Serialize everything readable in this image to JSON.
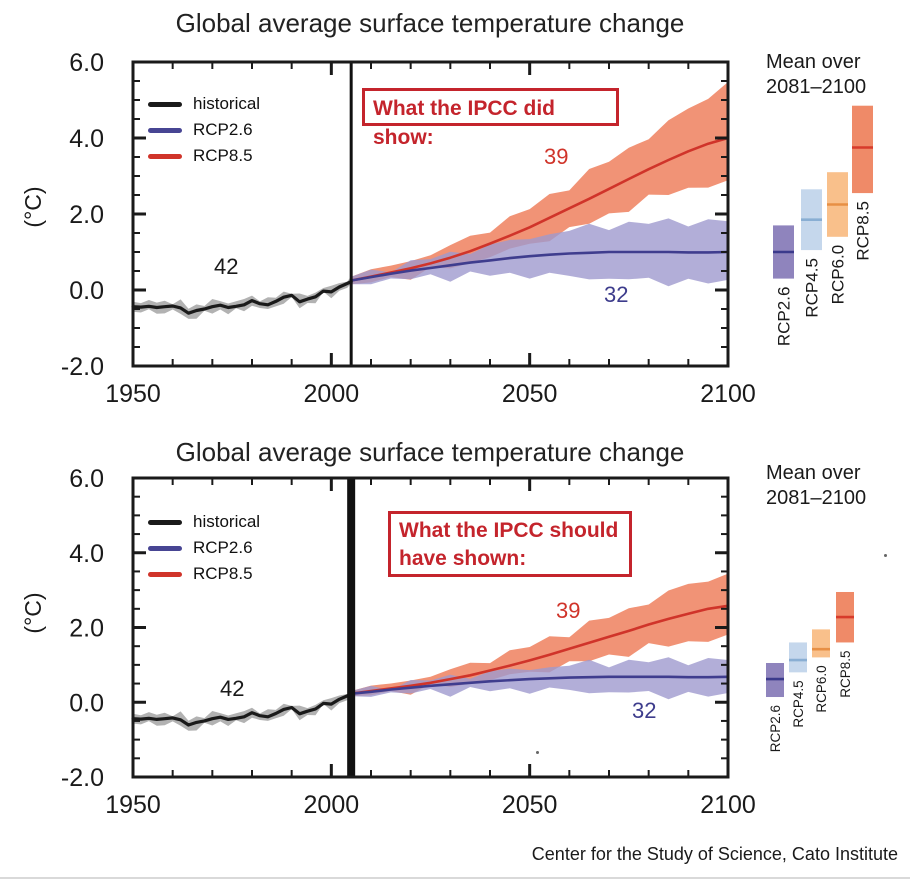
{
  "panels": [
    {
      "title": "Global average surface temperature change",
      "ylabel": "(°C)",
      "annotation": {
        "line1": "What the IPCC did show:",
        "line2": ""
      },
      "legend": [
        {
          "label": "historical",
          "color": "#1a1a1a"
        },
        {
          "label": "RCP2.6",
          "color": "#474593"
        },
        {
          "label": "RCP8.5",
          "color": "#d0342a"
        }
      ],
      "mean_over": {
        "line1": "Mean over",
        "line2": "2081–2100"
      }
    },
    {
      "title": "Global average surface temperature change",
      "ylabel": "(°C)",
      "annotation": {
        "line1": "What the IPCC should",
        "line2": "have shown:"
      },
      "legend": [
        {
          "label": "historical",
          "color": "#1a1a1a"
        },
        {
          "label": "RCP2.6",
          "color": "#474593"
        },
        {
          "label": "RCP8.5",
          "color": "#d0342a"
        }
      ],
      "mean_over": {
        "line1": "Mean over",
        "line2": "2081–2100"
      }
    }
  ],
  "footer": {
    "credit": "Center for the Study of Science, Cato Institute"
  },
  "chart_data": [
    {
      "type": "line",
      "title": "Global average surface temperature change",
      "ylabel": "(°C)",
      "x_range": [
        1950,
        2100
      ],
      "y_range": [
        -2,
        6
      ],
      "xticks": {
        "values": [
          1950,
          2000,
          2050,
          2100
        ],
        "labels": [
          "1950",
          "2000",
          "2050",
          "2100"
        ]
      },
      "yticks": {
        "values": [
          6,
          4,
          2,
          0,
          -2
        ],
        "labels": [
          "6.0",
          "4.0",
          "2.0",
          "0.0",
          "-2.0"
        ]
      },
      "x_minor_step": 10,
      "y_minor_step": 0.5,
      "vline_year": 2005,
      "grid": false,
      "series": [
        {
          "name": "historical",
          "count": "42",
          "line_color": "#1a1a1a",
          "band_color": "#b2b2b2",
          "band_opacity": 1,
          "years": [
            1950,
            1952,
            1954,
            1956,
            1958,
            1960,
            1962,
            1964,
            1966,
            1968,
            1970,
            1972,
            1974,
            1976,
            1978,
            1980,
            1982,
            1984,
            1986,
            1988,
            1990,
            1992,
            1994,
            1996,
            1998,
            2000,
            2002,
            2004,
            2005
          ],
          "mean": [
            -0.44,
            -0.45,
            -0.43,
            -0.46,
            -0.44,
            -0.42,
            -0.47,
            -0.61,
            -0.54,
            -0.5,
            -0.44,
            -0.4,
            -0.46,
            -0.43,
            -0.39,
            -0.28,
            -0.36,
            -0.39,
            -0.3,
            -0.19,
            -0.14,
            -0.31,
            -0.24,
            -0.18,
            -0.03,
            -0.05,
            0.08,
            0.17,
            0.22
          ],
          "lo": [
            -0.57,
            -0.58,
            -0.56,
            -0.6,
            -0.58,
            -0.56,
            -0.62,
            -0.77,
            -0.69,
            -0.64,
            -0.57,
            -0.53,
            -0.59,
            -0.56,
            -0.51,
            -0.4,
            -0.49,
            -0.52,
            -0.42,
            -0.31,
            -0.26,
            -0.44,
            -0.36,
            -0.29,
            -0.14,
            -0.16,
            -0.03,
            0.07,
            0.12
          ],
          "hi": [
            -0.31,
            -0.32,
            -0.3,
            -0.33,
            -0.31,
            -0.29,
            -0.33,
            -0.46,
            -0.4,
            -0.36,
            -0.31,
            -0.27,
            -0.33,
            -0.3,
            -0.26,
            -0.16,
            -0.23,
            -0.26,
            -0.18,
            -0.07,
            -0.02,
            -0.18,
            -0.12,
            -0.07,
            0.08,
            0.06,
            0.19,
            0.27,
            0.32
          ]
        },
        {
          "name": "RCP8.5",
          "count": "39",
          "line_color": "#d0342a",
          "band_color": "#f19376",
          "band_opacity": 1,
          "years": [
            2005,
            2010,
            2015,
            2020,
            2025,
            2030,
            2035,
            2040,
            2045,
            2050,
            2055,
            2060,
            2065,
            2070,
            2075,
            2080,
            2085,
            2090,
            2095,
            2100
          ],
          "mean": [
            0.25,
            0.35,
            0.46,
            0.57,
            0.7,
            0.85,
            1.02,
            1.22,
            1.43,
            1.65,
            1.9,
            2.15,
            2.4,
            2.66,
            2.92,
            3.18,
            3.42,
            3.65,
            3.85,
            4.0
          ],
          "lo": [
            0.15,
            0.22,
            0.3,
            0.38,
            0.48,
            0.6,
            0.73,
            0.88,
            1.04,
            1.2,
            1.38,
            1.57,
            1.77,
            1.97,
            2.18,
            2.38,
            2.55,
            2.68,
            2.76,
            2.8
          ],
          "hi": [
            0.35,
            0.5,
            0.64,
            0.78,
            0.95,
            1.15,
            1.37,
            1.62,
            1.88,
            2.15,
            2.45,
            2.76,
            3.08,
            3.4,
            3.72,
            4.05,
            4.4,
            4.75,
            5.1,
            5.45
          ]
        },
        {
          "name": "RCP2.6",
          "count": "32",
          "line_color": "#3f3d8e",
          "band_color": "#9f9ace",
          "band_opacity": 0.8,
          "years": [
            2005,
            2010,
            2015,
            2020,
            2025,
            2030,
            2035,
            2040,
            2045,
            2050,
            2055,
            2060,
            2065,
            2070,
            2075,
            2080,
            2085,
            2090,
            2095,
            2100
          ],
          "mean": [
            0.25,
            0.34,
            0.43,
            0.51,
            0.58,
            0.65,
            0.72,
            0.78,
            0.84,
            0.89,
            0.93,
            0.96,
            0.98,
            1.0,
            1.0,
            1.0,
            1.0,
            0.99,
            0.99,
            1.0
          ],
          "lo": [
            0.15,
            0.2,
            0.26,
            0.3,
            0.33,
            0.36,
            0.39,
            0.4,
            0.41,
            0.4,
            0.38,
            0.35,
            0.33,
            0.3,
            0.27,
            0.25,
            0.23,
            0.21,
            0.2,
            0.2
          ],
          "hi": [
            0.35,
            0.48,
            0.6,
            0.72,
            0.83,
            0.94,
            1.05,
            1.16,
            1.27,
            1.38,
            1.48,
            1.57,
            1.64,
            1.7,
            1.74,
            1.77,
            1.79,
            1.8,
            1.8,
            1.8
          ]
        }
      ],
      "bars_title": "Mean over 2081–2100",
      "bars": [
        {
          "label": "RCP2.6",
          "lo": 0.3,
          "hi": 1.7,
          "mean": 1.0,
          "fill": "#8f84bd",
          "line": "#3b3a8c"
        },
        {
          "label": "RCP4.5",
          "lo": 1.05,
          "hi": 2.65,
          "mean": 1.85,
          "fill": "#c5d7ec",
          "line": "#89aed3"
        },
        {
          "label": "RCP6.0",
          "lo": 1.4,
          "hi": 3.1,
          "mean": 2.25,
          "fill": "#f9c08b",
          "line": "#e78f45"
        },
        {
          "label": "RCP8.5",
          "lo": 2.55,
          "hi": 4.85,
          "mean": 3.75,
          "fill": "#ef8a68",
          "line": "#d73b2b"
        }
      ]
    },
    {
      "type": "line",
      "title": "Global average surface temperature change",
      "ylabel": "(°C)",
      "x_range": [
        1950,
        2100
      ],
      "y_range": [
        -2,
        6
      ],
      "xticks": {
        "values": [
          1950,
          2000,
          2050,
          2100
        ],
        "labels": [
          "1950",
          "2000",
          "2050",
          "2100"
        ]
      },
      "yticks": {
        "values": [
          6,
          4,
          2,
          0,
          -2
        ],
        "labels": [
          "6.0",
          "4.0",
          "2.0",
          "0.0",
          "-2.0"
        ]
      },
      "x_minor_step": 10,
      "y_minor_step": 0.5,
      "vline_year": 2005,
      "grid": false,
      "series": [
        {
          "name": "historical",
          "count": "42",
          "line_color": "#1a1a1a",
          "band_color": "#b2b2b2",
          "band_opacity": 1,
          "years": [
            1950,
            1952,
            1954,
            1956,
            1958,
            1960,
            1962,
            1964,
            1966,
            1968,
            1970,
            1972,
            1974,
            1976,
            1978,
            1980,
            1982,
            1984,
            1986,
            1988,
            1990,
            1992,
            1994,
            1996,
            1998,
            2000,
            2002,
            2004,
            2005
          ],
          "mean": [
            -0.44,
            -0.45,
            -0.43,
            -0.46,
            -0.44,
            -0.42,
            -0.47,
            -0.61,
            -0.54,
            -0.5,
            -0.44,
            -0.4,
            -0.46,
            -0.43,
            -0.39,
            -0.28,
            -0.36,
            -0.39,
            -0.3,
            -0.19,
            -0.14,
            -0.31,
            -0.24,
            -0.18,
            -0.03,
            -0.05,
            0.08,
            0.17,
            0.22
          ],
          "lo": [
            -0.57,
            -0.58,
            -0.56,
            -0.6,
            -0.58,
            -0.56,
            -0.62,
            -0.77,
            -0.69,
            -0.64,
            -0.57,
            -0.53,
            -0.59,
            -0.56,
            -0.51,
            -0.4,
            -0.49,
            -0.52,
            -0.42,
            -0.31,
            -0.26,
            -0.44,
            -0.36,
            -0.29,
            -0.14,
            -0.16,
            -0.03,
            0.07,
            0.12
          ],
          "hi": [
            -0.31,
            -0.32,
            -0.3,
            -0.33,
            -0.31,
            -0.29,
            -0.33,
            -0.46,
            -0.4,
            -0.36,
            -0.31,
            -0.27,
            -0.33,
            -0.3,
            -0.26,
            -0.16,
            -0.23,
            -0.26,
            -0.18,
            -0.07,
            -0.02,
            -0.18,
            -0.12,
            -0.07,
            0.08,
            0.06,
            0.19,
            0.27,
            0.32
          ]
        },
        {
          "name": "RCP8.5",
          "count": "39",
          "line_color": "#d0342a",
          "band_color": "#f19376",
          "band_opacity": 1,
          "years": [
            2005,
            2010,
            2015,
            2020,
            2025,
            2030,
            2035,
            2040,
            2045,
            2050,
            2055,
            2060,
            2065,
            2070,
            2075,
            2080,
            2085,
            2090,
            2095,
            2100
          ],
          "mean": [
            0.23,
            0.3,
            0.37,
            0.44,
            0.52,
            0.62,
            0.72,
            0.85,
            0.98,
            1.12,
            1.27,
            1.43,
            1.59,
            1.75,
            1.91,
            2.08,
            2.23,
            2.37,
            2.5,
            2.58
          ],
          "lo": [
            0.16,
            0.21,
            0.26,
            0.31,
            0.37,
            0.44,
            0.52,
            0.61,
            0.7,
            0.8,
            0.9,
            1.01,
            1.12,
            1.23,
            1.34,
            1.45,
            1.54,
            1.62,
            1.68,
            1.72
          ],
          "hi": [
            0.3,
            0.4,
            0.5,
            0.6,
            0.72,
            0.85,
            1.0,
            1.16,
            1.33,
            1.5,
            1.69,
            1.88,
            2.08,
            2.28,
            2.49,
            2.7,
            2.92,
            3.14,
            3.3,
            3.42
          ]
        },
        {
          "name": "RCP2.6",
          "count": "32",
          "line_color": "#3f3d8e",
          "band_color": "#9f9ace",
          "band_opacity": 0.8,
          "years": [
            2005,
            2010,
            2015,
            2020,
            2025,
            2030,
            2035,
            2040,
            2045,
            2050,
            2055,
            2060,
            2065,
            2070,
            2075,
            2080,
            2085,
            2090,
            2095,
            2100
          ],
          "mean": [
            0.23,
            0.28,
            0.34,
            0.39,
            0.44,
            0.48,
            0.52,
            0.56,
            0.59,
            0.62,
            0.64,
            0.66,
            0.67,
            0.68,
            0.68,
            0.68,
            0.68,
            0.67,
            0.67,
            0.68
          ],
          "lo": [
            0.16,
            0.19,
            0.22,
            0.25,
            0.27,
            0.29,
            0.31,
            0.32,
            0.33,
            0.33,
            0.32,
            0.31,
            0.29,
            0.27,
            0.25,
            0.23,
            0.21,
            0.19,
            0.18,
            0.18
          ],
          "hi": [
            0.3,
            0.38,
            0.46,
            0.53,
            0.6,
            0.67,
            0.73,
            0.79,
            0.85,
            0.9,
            0.95,
            0.99,
            1.03,
            1.06,
            1.08,
            1.1,
            1.11,
            1.12,
            1.12,
            1.12
          ]
        }
      ],
      "bars_title": "Mean over 2081–2100",
      "bars": [
        {
          "label": "RCP2.6",
          "lo": 0.14,
          "hi": 1.05,
          "mean": 0.62,
          "fill": "#8f84bd",
          "line": "#3b3a8c"
        },
        {
          "label": "RCP4.5",
          "lo": 0.8,
          "hi": 1.6,
          "mean": 1.13,
          "fill": "#c5d7ec",
          "line": "#89aed3"
        },
        {
          "label": "RCP6.0",
          "lo": 1.2,
          "hi": 1.95,
          "mean": 1.42,
          "fill": "#f9c08b",
          "line": "#e78f45"
        },
        {
          "label": "RCP8.5",
          "lo": 1.6,
          "hi": 2.95,
          "mean": 2.28,
          "fill": "#ef8a68",
          "line": "#d73b2b"
        }
      ]
    }
  ]
}
